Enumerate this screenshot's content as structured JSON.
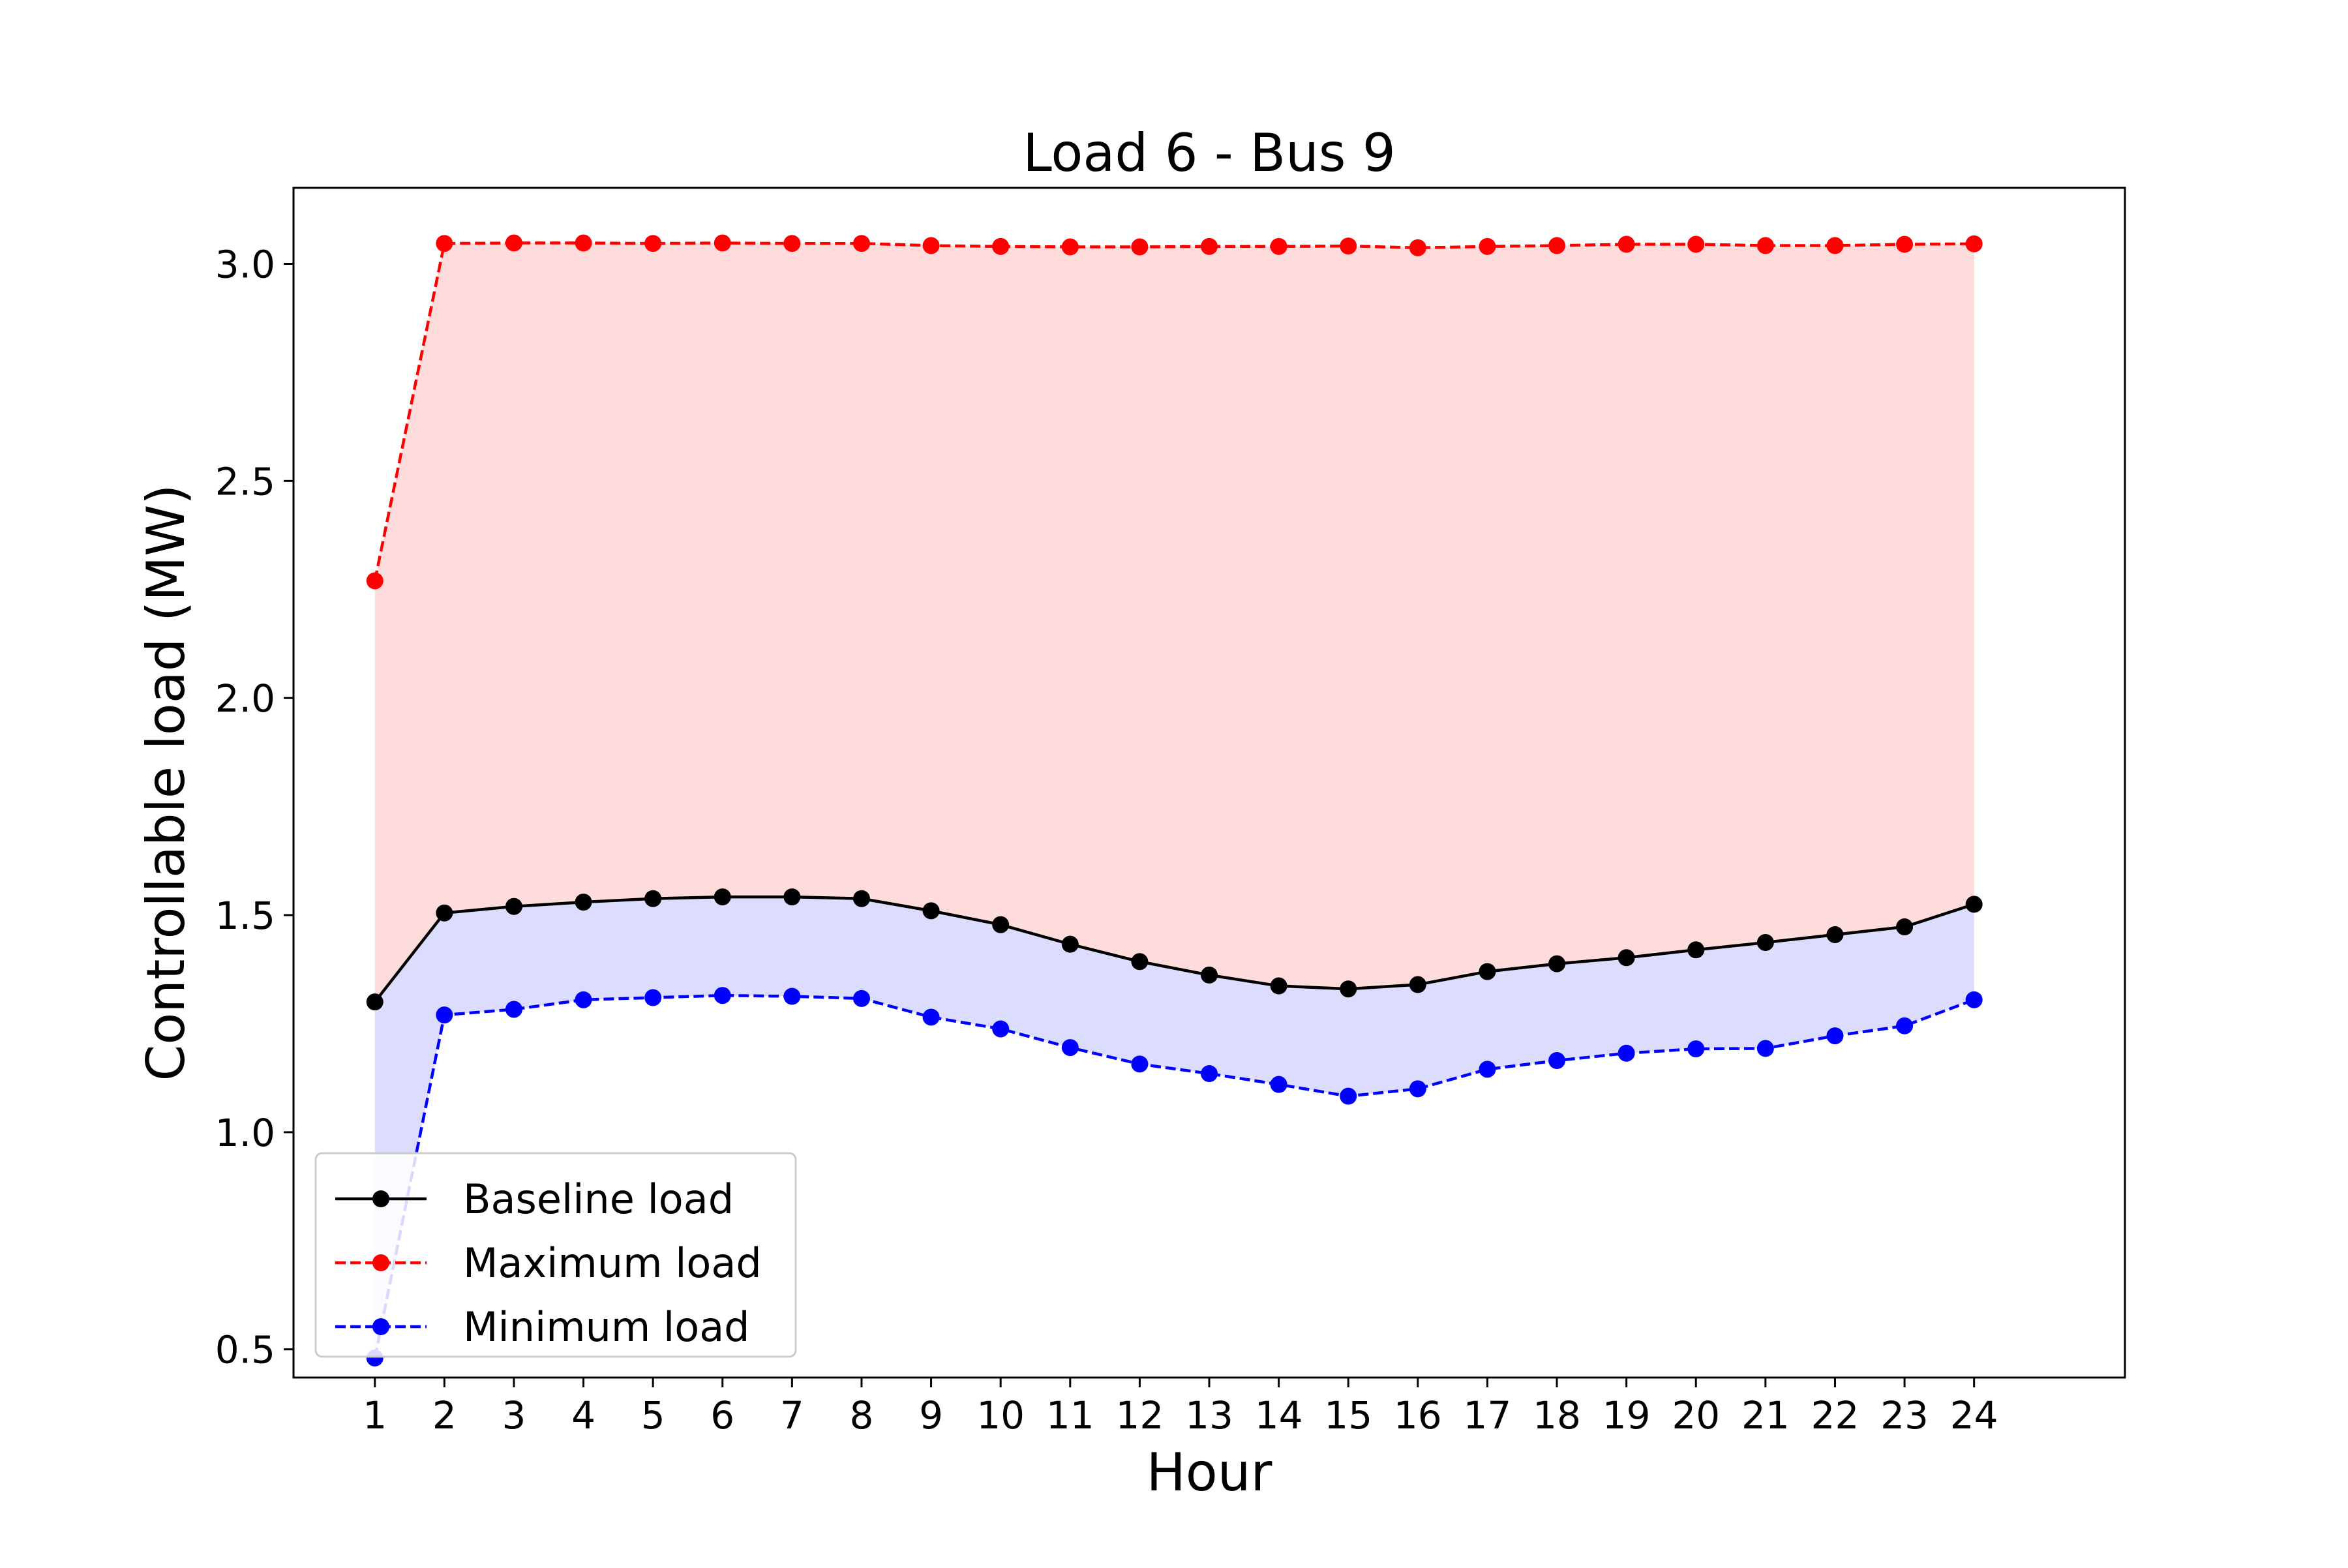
{
  "chart_data": {
    "type": "line",
    "title": "Load 6 - Bus 9",
    "xlabel": "Hour",
    "ylabel": "Controllable load (MW)",
    "x": [
      1,
      2,
      3,
      4,
      5,
      6,
      7,
      8,
      9,
      10,
      11,
      12,
      13,
      14,
      15,
      16,
      17,
      18,
      19,
      20,
      21,
      22,
      23,
      24
    ],
    "x_ticks": [
      "1",
      "2",
      "3",
      "4",
      "5",
      "6",
      "7",
      "8",
      "9",
      "10",
      "11",
      "12",
      "13",
      "14",
      "15",
      "16",
      "17",
      "18",
      "19",
      "20",
      "21",
      "22",
      "23",
      "24"
    ],
    "y_ticks": [
      "0.5",
      "1.0",
      "1.5",
      "2.0",
      "2.5",
      "3.0"
    ],
    "y_tick_values": [
      0.5,
      1.0,
      1.5,
      2.0,
      2.5,
      3.0
    ],
    "xlim": [
      -0.17,
      26.17
    ],
    "ylim": [
      0.435,
      3.175
    ],
    "grid": false,
    "legend_position": "lower-left",
    "series": [
      {
        "name": "Baseline load",
        "color": "#000000",
        "line_style": "solid",
        "marker": "circle",
        "values": [
          1.3,
          1.505,
          1.52,
          1.53,
          1.538,
          1.542,
          1.542,
          1.538,
          1.51,
          1.478,
          1.433,
          1.393,
          1.362,
          1.337,
          1.33,
          1.34,
          1.37,
          1.388,
          1.402,
          1.42,
          1.437,
          1.455,
          1.473,
          1.525
        ]
      },
      {
        "name": "Maximum load",
        "color": "#ff0000",
        "line_style": "dashed",
        "marker": "circle",
        "values": [
          2.27,
          3.047,
          3.048,
          3.048,
          3.047,
          3.048,
          3.047,
          3.047,
          3.042,
          3.04,
          3.039,
          3.039,
          3.04,
          3.04,
          3.041,
          3.037,
          3.04,
          3.042,
          3.045,
          3.045,
          3.042,
          3.042,
          3.045,
          3.046
        ]
      },
      {
        "name": "Minimum load",
        "color": "#0000ff",
        "line_style": "dashed",
        "marker": "circle",
        "values": [
          0.48,
          1.27,
          1.283,
          1.305,
          1.31,
          1.315,
          1.313,
          1.308,
          1.265,
          1.238,
          1.195,
          1.157,
          1.135,
          1.11,
          1.083,
          1.1,
          1.145,
          1.165,
          1.182,
          1.192,
          1.193,
          1.222,
          1.245,
          1.305
        ]
      }
    ],
    "fills": [
      {
        "between": [
          "Baseline load",
          "Maximum load"
        ],
        "color": "#ffdcdc"
      },
      {
        "between": [
          "Minimum load",
          "Baseline load"
        ],
        "color": "#dcdcff"
      }
    ]
  }
}
